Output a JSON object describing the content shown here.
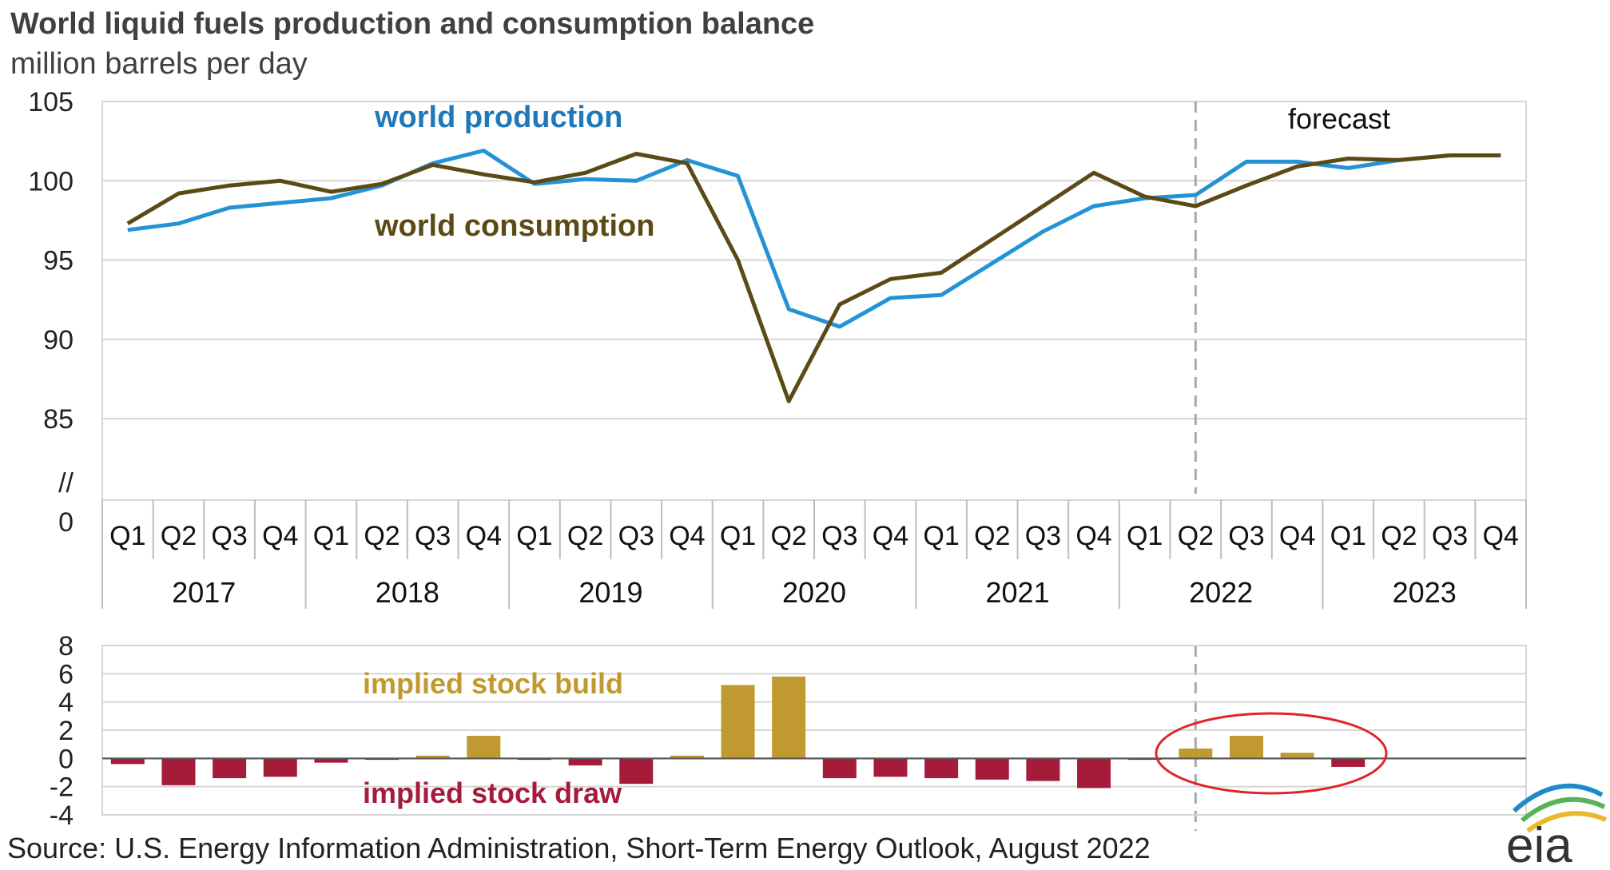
{
  "chart_data": [
    {
      "type": "line",
      "title": "World liquid fuels production and consumption balance",
      "subtitle": "million barrels per day",
      "ylim": [
        85,
        105
      ],
      "yticks": [
        "105",
        "100",
        "95",
        "90",
        "85"
      ],
      "y_break_label": "//",
      "y_zero_label": "0",
      "quarter_labels": [
        "Q1",
        "Q2",
        "Q3",
        "Q4"
      ],
      "years": [
        "2017",
        "2018",
        "2019",
        "2020",
        "2021",
        "2022",
        "2023"
      ],
      "forecast_label": "forecast",
      "forecast_start_quarter_index": 22,
      "series": [
        {
          "name": "world production",
          "color": "#2493d6",
          "values": [
            96.9,
            97.3,
            98.3,
            98.6,
            98.9,
            99.7,
            101.1,
            101.9,
            99.8,
            100.1,
            100.0,
            101.3,
            100.3,
            91.9,
            90.8,
            92.6,
            92.8,
            94.8,
            96.8,
            98.4,
            98.9,
            99.1,
            101.2,
            101.2,
            100.8,
            101.3,
            101.6,
            101.6
          ]
        },
        {
          "name": "world consumption",
          "color": "#5c4a16",
          "values": [
            97.3,
            99.2,
            99.7,
            100.0,
            99.3,
            99.8,
            101.0,
            100.4,
            99.9,
            100.5,
            101.7,
            101.1,
            95.0,
            86.1,
            92.2,
            93.8,
            94.2,
            96.3,
            98.4,
            100.5,
            99.0,
            98.4,
            99.7,
            100.9,
            101.4,
            101.3,
            101.6,
            101.6
          ]
        }
      ]
    },
    {
      "type": "bar",
      "ylim": [
        -4,
        8
      ],
      "yticks": [
        "8",
        "6",
        "4",
        "2",
        "0",
        "-2",
        "-4"
      ],
      "build_label": "implied stock  build",
      "draw_label": "implied stock draw",
      "build_color": "#c09a30",
      "draw_color": "#a51c3a",
      "values": [
        -0.4,
        -1.9,
        -1.4,
        -1.3,
        -0.3,
        -0.1,
        0.2,
        1.6,
        -0.1,
        -0.5,
        -1.8,
        0.2,
        5.2,
        5.8,
        -1.4,
        -1.3,
        -1.4,
        -1.5,
        -1.6,
        -2.1,
        -0.1,
        0.7,
        1.6,
        0.4,
        -0.6,
        0.0,
        0.0,
        0.0
      ],
      "highlight_color": "#e0242c"
    }
  ],
  "source": "Source: U.S. Energy Information Administration, Short-Term Energy Outlook, August 2022",
  "logo_text": "eia"
}
